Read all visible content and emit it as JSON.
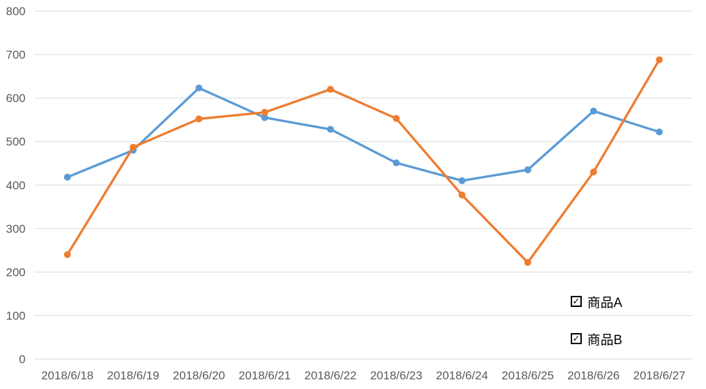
{
  "chart_data": {
    "type": "line",
    "title": "",
    "xlabel": "",
    "ylabel": "",
    "categories": [
      "2018/6/18",
      "2018/6/19",
      "2018/6/20",
      "2018/6/21",
      "2018/6/22",
      "2018/6/23",
      "2018/6/24",
      "2018/6/25",
      "2018/6/26",
      "2018/6/27"
    ],
    "series": [
      {
        "name": "商品A",
        "color": "#5B9BD5",
        "values": [
          418,
          480,
          623,
          555,
          528,
          451,
          410,
          435,
          570,
          522
        ]
      },
      {
        "name": "商品B",
        "color": "#ED7D31",
        "values": [
          240,
          487,
          552,
          567,
          620,
          553,
          377,
          222,
          430,
          688
        ]
      }
    ],
    "ylim": [
      0,
      800
    ],
    "yticks": [
      0,
      100,
      200,
      300,
      400,
      500,
      600,
      700,
      800
    ],
    "grid": true,
    "gridline_color": "#D9D9D9",
    "axis_text_color": "#595959",
    "background_color": "#FFFFFF",
    "legend_position": "right-middle"
  },
  "legend": {
    "check_glyph": "✓",
    "items": [
      {
        "label": "商品A",
        "checked": true
      },
      {
        "label": "商品B",
        "checked": true
      }
    ]
  }
}
